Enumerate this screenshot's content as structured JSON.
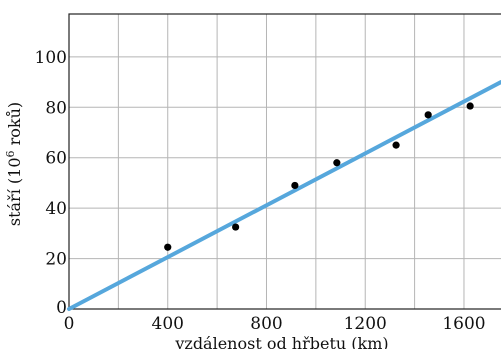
{
  "chart_data": {
    "type": "scatter",
    "xlabel": "vzdálenost od hřbetu (km)",
    "ylabel_parts": [
      "stáří (10",
      "6",
      " roků)"
    ],
    "xlim": [
      0,
      1750
    ],
    "ylim": [
      0,
      117
    ],
    "x_ticks": [
      0,
      400,
      800,
      1200,
      1600
    ],
    "y_ticks": [
      0,
      20,
      40,
      60,
      80,
      100
    ],
    "x_tick_labels": [
      "0",
      "400",
      "800",
      "1200",
      "1600"
    ],
    "y_tick_labels": [
      "0",
      "20",
      "40",
      "60",
      "80",
      "100"
    ],
    "x_grid": [
      200,
      400,
      600,
      800,
      1000,
      1200,
      1400,
      1600
    ],
    "y_grid": [
      20,
      40,
      60,
      80,
      100
    ],
    "grid": true,
    "points": [
      {
        "x": 400,
        "y": 24.5
      },
      {
        "x": 675,
        "y": 32.5
      },
      {
        "x": 915,
        "y": 49
      },
      {
        "x": 1085,
        "y": 58
      },
      {
        "x": 1325,
        "y": 65
      },
      {
        "x": 1455,
        "y": 77
      },
      {
        "x": 1625,
        "y": 80.5
      }
    ],
    "fit_line": {
      "x": [
        0,
        1750
      ],
      "y": [
        0,
        90
      ]
    },
    "colors": {
      "fit": "#56a7dc",
      "points": "#000000",
      "grid": "#b5b5b5"
    }
  }
}
